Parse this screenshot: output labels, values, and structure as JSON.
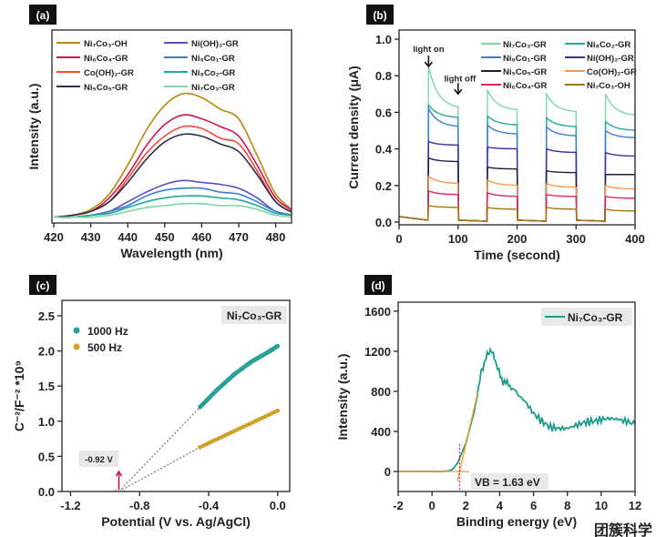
{
  "panel_labels": [
    "(a)",
    "(b)",
    "(c)",
    "(d)"
  ],
  "watermark": "团簇科学",
  "chart_data": [
    {
      "panel": "(a)",
      "type": "line",
      "xlabel": "Wavelength (nm)",
      "ylabel": "Intensity (a.u.)",
      "xlim": [
        419.5,
        484.3
      ],
      "ylim": [
        0,
        1
      ],
      "xticks": [
        420,
        430,
        440,
        450,
        460,
        470,
        480
      ],
      "yticks": [],
      "grid": false,
      "legend_placement": "top",
      "x": [
        420,
        425,
        430,
        435,
        440,
        445,
        450,
        455,
        460,
        465,
        470,
        475,
        480,
        485
      ],
      "series": [
        {
          "name": "Ni₇Co₃-OH",
          "color": "#b8860b",
          "values": [
            0.03,
            0.04,
            0.07,
            0.15,
            0.3,
            0.48,
            0.61,
            0.67,
            0.65,
            0.59,
            0.54,
            0.35,
            0.15,
            0.06
          ]
        },
        {
          "name": "Ni₆Co₄-GR",
          "color": "#c8174f",
          "values": [
            0.03,
            0.04,
            0.06,
            0.13,
            0.25,
            0.4,
            0.51,
            0.56,
            0.54,
            0.5,
            0.45,
            0.3,
            0.13,
            0.06
          ]
        },
        {
          "name": "Co(OH)₂-GR",
          "color": "#ef4a3a",
          "values": [
            0.03,
            0.04,
            0.06,
            0.11,
            0.23,
            0.36,
            0.45,
            0.5,
            0.49,
            0.44,
            0.41,
            0.27,
            0.11,
            0.05
          ]
        },
        {
          "name": "Ni₅Co₅-GR",
          "color": "#2d2d4a",
          "values": [
            0.03,
            0.04,
            0.06,
            0.11,
            0.21,
            0.33,
            0.42,
            0.46,
            0.45,
            0.41,
            0.37,
            0.25,
            0.11,
            0.05
          ]
        },
        {
          "name": "Ni(OH)₂-GR",
          "color": "#5a4fc0",
          "values": [
            0.03,
            0.03,
            0.04,
            0.06,
            0.11,
            0.16,
            0.2,
            0.22,
            0.21,
            0.2,
            0.18,
            0.13,
            0.06,
            0.04
          ]
        },
        {
          "name": "Ni₉Co₁-GR",
          "color": "#3a7bd5",
          "values": [
            0.03,
            0.03,
            0.04,
            0.06,
            0.09,
            0.14,
            0.17,
            0.18,
            0.18,
            0.16,
            0.15,
            0.11,
            0.06,
            0.04
          ]
        },
        {
          "name": "Ni₈Co₂-GR",
          "color": "#26a69a",
          "values": [
            0.03,
            0.03,
            0.04,
            0.05,
            0.08,
            0.11,
            0.13,
            0.14,
            0.14,
            0.13,
            0.12,
            0.09,
            0.05,
            0.04
          ]
        },
        {
          "name": "Ni₇Co₃-GR",
          "color": "#7fd6a8",
          "values": [
            0.03,
            0.03,
            0.03,
            0.04,
            0.06,
            0.08,
            0.09,
            0.1,
            0.1,
            0.09,
            0.09,
            0.07,
            0.04,
            0.03
          ]
        }
      ]
    },
    {
      "panel": "(b)",
      "type": "line",
      "xlabel": "Time (second)",
      "ylabel": "Current density (μA)",
      "xlim": [
        0,
        400
      ],
      "ylim": [
        -0.015,
        1.05
      ],
      "xticks": [
        0,
        100,
        200,
        300,
        400
      ],
      "yticks": [
        "0.0",
        "0.2",
        "0.4",
        "0.6",
        "0.8",
        "1.0"
      ],
      "grid": false,
      "legend_placement": "top-right",
      "annotations": [
        {
          "text": "light on",
          "x": 50,
          "y": 0.93
        },
        {
          "text": "light off",
          "x": 100,
          "y": 0.78
        }
      ],
      "light_on": [
        50,
        150,
        250,
        350
      ],
      "light_off": [
        100,
        200,
        300,
        400
      ],
      "series": [
        {
          "name": "Ni₇Co₃-GR",
          "color": "#7fd6a8",
          "peaks": [
            0.85,
            0.72,
            0.7,
            0.7
          ],
          "ends": [
            0.62,
            0.61,
            0.6,
            0.58
          ]
        },
        {
          "name": "Ni₈Co₂-GR",
          "color": "#26a69a",
          "peaks": [
            0.64,
            0.58,
            0.57,
            0.55
          ],
          "ends": [
            0.57,
            0.53,
            0.52,
            0.5
          ]
        },
        {
          "name": "Ni₉Co₁-GR",
          "color": "#3a7bd5",
          "peaks": [
            0.62,
            0.53,
            0.52,
            0.5
          ],
          "ends": [
            0.52,
            0.48,
            0.47,
            0.46
          ]
        },
        {
          "name": "Ni(OH)₂-GR",
          "color": "#3b2fa0",
          "peaks": [
            0.44,
            0.41,
            0.4,
            0.38
          ],
          "ends": [
            0.42,
            0.4,
            0.38,
            0.36
          ]
        },
        {
          "name": "Ni₅Co₅-GR",
          "color": "#1e1e3a",
          "peaks": [
            0.35,
            0.3,
            0.28,
            0.26
          ],
          "ends": [
            0.33,
            0.29,
            0.27,
            0.26
          ]
        },
        {
          "name": "Co(OH)₂-GR",
          "color": "#f59a4a",
          "peaks": [
            0.25,
            0.23,
            0.21,
            0.2
          ],
          "ends": [
            0.21,
            0.2,
            0.19,
            0.18
          ]
        },
        {
          "name": "Ni₆Co₄-GR",
          "color": "#e0245e",
          "peaks": [
            0.17,
            0.16,
            0.15,
            0.14
          ],
          "ends": [
            0.15,
            0.14,
            0.14,
            0.13
          ]
        },
        {
          "name": "Ni₇Co₃-OH",
          "color": "#a07810",
          "peaks": [
            0.09,
            0.08,
            0.08,
            0.07
          ],
          "ends": [
            0.08,
            0.07,
            0.07,
            0.06
          ]
        }
      ]
    },
    {
      "panel": "(c)",
      "type": "scatter",
      "title": "Ni₇Co₃-GR",
      "xlabel": "Potential (V vs. Ag/AgCl)",
      "ylabel": "C⁻²/F⁻² *10⁹",
      "xlim": [
        -1.25,
        0.07
      ],
      "ylim": [
        0,
        2.72
      ],
      "xticks": [
        "-1.2",
        "-0.8",
        "-0.4",
        "0.0"
      ],
      "yticks": [
        "0.0",
        "0.5",
        "1.0",
        "1.5",
        "2.0",
        "2.5"
      ],
      "grid": false,
      "legend_placement": "top-left",
      "annotation": {
        "text": "-0.92 V",
        "x": -0.92
      },
      "series": [
        {
          "name": "1000 Hz",
          "color": "#2aa198",
          "x": [
            -0.45,
            -0.35,
            -0.25,
            -0.15,
            -0.05,
            0.0
          ],
          "y": [
            1.2,
            1.45,
            1.67,
            1.85,
            1.99,
            2.07
          ]
        },
        {
          "name": "500 Hz",
          "color": "#c9a227",
          "x": [
            -0.45,
            0.0
          ],
          "y": [
            0.63,
            1.15
          ]
        }
      ]
    },
    {
      "panel": "(d)",
      "type": "line",
      "xlabel": "Binding energy (eV)",
      "ylabel": "Intensity (a.u.)",
      "xlim": [
        -2,
        12
      ],
      "ylim": [
        -200,
        1690
      ],
      "xticks": [
        "-2",
        "0",
        "2",
        "4",
        "6",
        "8",
        "10",
        "12"
      ],
      "yticks": [
        "0",
        "400",
        "800",
        "1200",
        "1600"
      ],
      "grid": false,
      "legend_placement": "top-right",
      "annotation": {
        "text": "VB = 1.63 eV",
        "x": 1.63
      },
      "series": [
        {
          "name": "Ni₇Co₃-GR",
          "color": "#1e9a8a",
          "x": [
            -2,
            -1,
            0,
            0.5,
            1,
            1.2,
            1.5,
            2,
            2.5,
            2.9,
            3.2,
            3.5,
            3.8,
            4.2,
            4.6,
            5,
            5.5,
            6,
            6.5,
            7,
            7.5,
            8,
            8.5,
            9,
            9.5,
            10,
            10.5,
            11,
            11.5,
            12
          ],
          "y": [
            0,
            0,
            0,
            0,
            5,
            20,
            80,
            280,
            600,
            1000,
            1130,
            1230,
            1050,
            900,
            860,
            780,
            700,
            580,
            500,
            440,
            430,
            430,
            460,
            490,
            500,
            520,
            530,
            520,
            500,
            470
          ]
        }
      ],
      "fit_lines": [
        {
          "color": "#f0a030",
          "x": [
            1.5,
            2.7
          ],
          "y": [
            -100,
            790
          ]
        },
        {
          "color": "#f0a030",
          "x": [
            -2,
            2.2
          ],
          "y": [
            0,
            0
          ]
        }
      ]
    }
  ]
}
